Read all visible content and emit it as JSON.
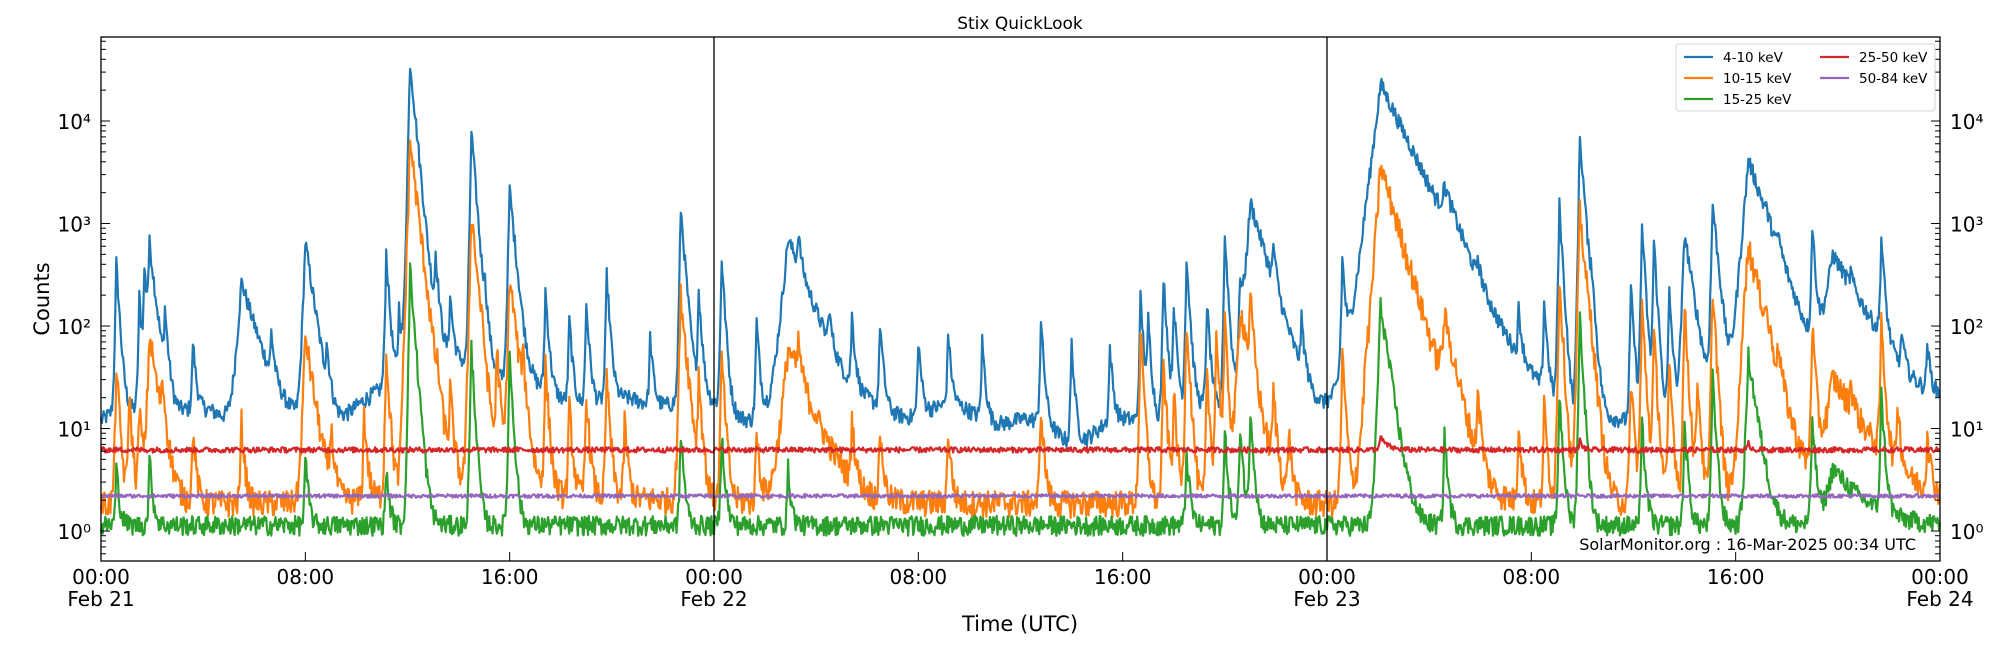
{
  "chart_data": {
    "type": "line",
    "title": "Stix QuickLook",
    "xlabel": "Time (UTC)",
    "ylabel": "Counts",
    "yscale": "log",
    "ylim": [
      0.51,
      66000
    ],
    "xlim": [
      "Feb 21 00:00",
      "Feb 24 00:00"
    ],
    "grid": false,
    "legend_placement": "top-right",
    "yticks": [
      1,
      10,
      100,
      1000,
      10000
    ],
    "ytick_labels": [
      "10⁰",
      "10¹",
      "10²",
      "10³",
      "10⁴"
    ],
    "xticks": [
      {
        "time": "Feb 21 00:00",
        "label": "00:00",
        "sublabel": "Feb 21"
      },
      {
        "time": "Feb 21 08:00",
        "label": "08:00",
        "sublabel": ""
      },
      {
        "time": "Feb 21 16:00",
        "label": "16:00",
        "sublabel": ""
      },
      {
        "time": "Feb 22 00:00",
        "label": "00:00",
        "sublabel": "Feb 22"
      },
      {
        "time": "Feb 22 08:00",
        "label": "08:00",
        "sublabel": ""
      },
      {
        "time": "Feb 22 16:00",
        "label": "16:00",
        "sublabel": ""
      },
      {
        "time": "Feb 23 00:00",
        "label": "00:00",
        "sublabel": "Feb 23"
      },
      {
        "time": "Feb 23 08:00",
        "label": "08:00",
        "sublabel": ""
      },
      {
        "time": "Feb 23 16:00",
        "label": "16:00",
        "sublabel": ""
      },
      {
        "time": "Feb 24 00:00",
        "label": "00:00",
        "sublabel": "Feb 24"
      }
    ],
    "day_boundaries": [
      "Feb 22 00:00",
      "Feb 23 00:00"
    ],
    "annotation": "SolarMonitor.org : 16-Mar-2025 00:34 UTC",
    "series": [
      {
        "name": "4-10 keV",
        "color": "#1f77b4",
        "baseline": 12,
        "peaks": [
          [
            "Feb 21 00:36",
            400
          ],
          [
            "Feb 21 01:30",
            180
          ],
          [
            "Feb 21 01:42",
            330
          ],
          [
            "Feb 21 01:54",
            600,
            12
          ],
          [
            "Feb 21 02:30",
            110
          ],
          [
            "Feb 21 03:36",
            55
          ],
          [
            "Feb 21 05:30",
            260,
            30
          ],
          [
            "Feb 21 06:40",
            55
          ],
          [
            "Feb 21 08:00",
            650,
            15
          ],
          [
            "Feb 21 08:50",
            40
          ],
          [
            "Feb 21 11:10",
            500
          ],
          [
            "Feb 21 11:40",
            120
          ],
          [
            "Feb 21 12:30",
            45,
            240
          ],
          [
            "Feb 21 12:06",
            38000,
            10
          ],
          [
            "Feb 21 13:06",
            400
          ],
          [
            "Feb 21 13:40",
            150
          ],
          [
            "Feb 21 14:30",
            8000,
            8
          ],
          [
            "Feb 21 15:00",
            150
          ],
          [
            "Feb 21 16:00",
            2100,
            10
          ],
          [
            "Feb 21 17:24",
            200
          ],
          [
            "Feb 21 18:20",
            100
          ],
          [
            "Feb 21 19:00",
            150
          ],
          [
            "Feb 21 19:48",
            300
          ],
          [
            "Feb 21 21:30",
            60
          ],
          [
            "Feb 21 22:42",
            1400,
            8
          ],
          [
            "Feb 21 23:24",
            200
          ],
          [
            "Feb 22 00:18",
            450
          ],
          [
            "Feb 22 01:40",
            100
          ],
          [
            "Feb 22 02:54",
            700,
            40
          ],
          [
            "Feb 22 03:18",
            450
          ],
          [
            "Feb 22 04:30",
            80
          ],
          [
            "Feb 22 05:24",
            100
          ],
          [
            "Feb 22 06:30",
            90
          ],
          [
            "Feb 22 08:00",
            60
          ],
          [
            "Feb 22 09:10",
            70
          ],
          [
            "Feb 22 10:30",
            60
          ],
          [
            "Feb 22 12:48",
            100
          ],
          [
            "Feb 22 14:00",
            60
          ],
          [
            "Feb 22 15:30",
            50
          ],
          [
            "Feb 22 16:42",
            180
          ],
          [
            "Feb 22 17:00",
            100
          ],
          [
            "Feb 22 17:36",
            300
          ],
          [
            "Feb 22 18:00",
            150
          ],
          [
            "Feb 22 18:30",
            450
          ],
          [
            "Feb 22 19:18",
            150
          ],
          [
            "Feb 22 20:00",
            750
          ],
          [
            "Feb 22 20:36",
            250
          ],
          [
            "Feb 22 21:00",
            1600,
            30
          ],
          [
            "Feb 22 21:54",
            380
          ],
          [
            "Feb 22 23:00",
            80
          ],
          [
            "Feb 23 00:36",
            420
          ],
          [
            "Feb 23 01:30",
            130
          ],
          [
            "Feb 23 01:00",
            25,
            180
          ],
          [
            "Feb 23 02:06",
            23000,
            50
          ],
          [
            "Feb 23 03:12",
            150
          ],
          [
            "Feb 23 04:36",
            1200,
            25
          ],
          [
            "Feb 23 05:54",
            180
          ],
          [
            "Feb 23 07:30",
            100
          ],
          [
            "Feb 23 08:30",
            150
          ],
          [
            "Feb 23 09:06",
            1500
          ],
          [
            "Feb 23 09:54",
            7000,
            8
          ],
          [
            "Feb 23 10:20",
            200
          ],
          [
            "Feb 23 11:54",
            220
          ],
          [
            "Feb 23 12:20",
            960
          ],
          [
            "Feb 23 12:48",
            660
          ],
          [
            "Feb 23 13:24",
            200
          ],
          [
            "Feb 23 14:00",
            800,
            15
          ],
          [
            "Feb 23 15:06",
            1550,
            10
          ],
          [
            "Feb 23 16:30",
            4200,
            35
          ],
          [
            "Feb 23 17:10",
            200
          ],
          [
            "Feb 23 17:40",
            250
          ],
          [
            "Feb 23 19:00",
            900
          ],
          [
            "Feb 23 19:48",
            480,
            60
          ],
          [
            "Feb 23 20:30",
            100
          ],
          [
            "Feb 23 21:42",
            660
          ],
          [
            "Feb 23 22:30",
            50
          ],
          [
            "Feb 23 23:30",
            45
          ]
        ]
      },
      {
        "name": "10-15 keV",
        "color": "#ff7f0e",
        "baseline": 1.9,
        "peaks": [
          [
            "Feb 21 00:36",
            40
          ],
          [
            "Feb 21 01:06",
            20
          ],
          [
            "Feb 21 01:30",
            15
          ],
          [
            "Feb 21 01:54",
            80,
            15
          ],
          [
            "Feb 21 02:24",
            20
          ],
          [
            "Feb 21 03:36",
            8
          ],
          [
            "Feb 21 05:30",
            10
          ],
          [
            "Feb 21 08:00",
            80,
            15
          ],
          [
            "Feb 21 09:00",
            8
          ],
          [
            "Feb 21 10:18",
            12
          ],
          [
            "Feb 21 12:30",
            1.6,
            240
          ],
          [
            "Feb 21 11:10",
            55
          ],
          [
            "Feb 21 11:50",
            15
          ],
          [
            "Feb 21 12:06",
            6500,
            12
          ],
          [
            "Feb 21 12:40",
            20
          ],
          [
            "Feb 21 13:10",
            12
          ],
          [
            "Feb 21 13:40",
            20
          ],
          [
            "Feb 21 14:30",
            1300,
            10
          ],
          [
            "Feb 21 14:50",
            20
          ],
          [
            "Feb 21 15:30",
            60
          ],
          [
            "Feb 21 16:00",
            300,
            12
          ],
          [
            "Feb 21 16:30",
            40
          ],
          [
            "Feb 21 17:24",
            40
          ],
          [
            "Feb 21 18:20",
            15
          ],
          [
            "Feb 21 19:00",
            20
          ],
          [
            "Feb 21 19:48",
            30
          ],
          [
            "Feb 21 20:30",
            10
          ],
          [
            "Feb 21 22:42",
            200,
            10
          ],
          [
            "Feb 21 23:24",
            30
          ],
          [
            "Feb 22 00:18",
            50
          ],
          [
            "Feb 22 01:40",
            8
          ],
          [
            "Feb 22 02:54",
            60,
            40
          ],
          [
            "Feb 22 03:18",
            40
          ],
          [
            "Feb 22 05:24",
            10
          ],
          [
            "Feb 22 06:30",
            8
          ],
          [
            "Feb 22 09:10",
            8
          ],
          [
            "Feb 22 12:48",
            15
          ],
          [
            "Feb 22 16:42",
            80
          ],
          [
            "Feb 22 17:36",
            40
          ],
          [
            "Feb 22 18:00",
            20
          ],
          [
            "Feb 22 18:30",
            120
          ],
          [
            "Feb 22 19:18",
            30
          ],
          [
            "Feb 22 19:40",
            80
          ],
          [
            "Feb 22 20:00",
            100
          ],
          [
            "Feb 22 20:36",
            150,
            20
          ],
          [
            "Feb 22 21:00",
            150
          ],
          [
            "Feb 22 21:54",
            20
          ],
          [
            "Feb 22 22:30",
            8
          ],
          [
            "Feb 23 00:36",
            50
          ],
          [
            "Feb 23 01:30",
            20
          ],
          [
            "Feb 23 02:06",
            3700,
            30
          ],
          [
            "Feb 23 03:12",
            20
          ],
          [
            "Feb 23 04:36",
            100,
            20
          ],
          [
            "Feb 23 05:54",
            20
          ],
          [
            "Feb 23 07:30",
            10
          ],
          [
            "Feb 23 08:30",
            15
          ],
          [
            "Feb 23 09:06",
            300
          ],
          [
            "Feb 23 09:54",
            1300,
            10
          ],
          [
            "Feb 23 10:20",
            25
          ],
          [
            "Feb 23 11:54",
            30
          ],
          [
            "Feb 23 12:20",
            150
          ],
          [
            "Feb 23 12:48",
            80
          ],
          [
            "Feb 23 13:24",
            40
          ],
          [
            "Feb 23 14:00",
            150
          ],
          [
            "Feb 23 14:30",
            30
          ],
          [
            "Feb 23 15:06",
            250
          ],
          [
            "Feb 23 16:20",
            150
          ],
          [
            "Feb 23 16:30",
            600,
            25
          ],
          [
            "Feb 23 17:10",
            40
          ],
          [
            "Feb 23 17:40",
            30
          ],
          [
            "Feb 23 19:00",
            100
          ],
          [
            "Feb 23 19:48",
            30,
            60
          ],
          [
            "Feb 23 20:30",
            15
          ],
          [
            "Feb 23 21:42",
            100
          ],
          [
            "Feb 23 22:20",
            15
          ],
          [
            "Feb 23 23:30",
            8
          ]
        ]
      },
      {
        "name": "15-25 keV",
        "color": "#2ca02c",
        "baseline": 1.15,
        "peaks": [
          [
            "Feb 21 00:36",
            3
          ],
          [
            "Feb 21 01:54",
            4
          ],
          [
            "Feb 21 08:00",
            4
          ],
          [
            "Feb 21 11:10",
            3
          ],
          [
            "Feb 21 12:06",
            350,
            8
          ],
          [
            "Feb 21 14:30",
            60
          ],
          [
            "Feb 21 16:00",
            50
          ],
          [
            "Feb 21 22:42",
            8
          ],
          [
            "Feb 22 00:18",
            8
          ],
          [
            "Feb 22 02:54",
            3
          ],
          [
            "Feb 22 18:30",
            5
          ],
          [
            "Feb 22 20:00",
            8
          ],
          [
            "Feb 22 20:36",
            10
          ],
          [
            "Feb 22 21:00",
            15
          ],
          [
            "Feb 23 02:06",
            160,
            15
          ],
          [
            "Feb 23 04:36",
            8
          ],
          [
            "Feb 23 09:06",
            20
          ],
          [
            "Feb 23 09:54",
            120
          ],
          [
            "Feb 23 12:20",
            10
          ],
          [
            "Feb 23 14:00",
            10
          ],
          [
            "Feb 23 15:06",
            30
          ],
          [
            "Feb 23 16:30",
            50,
            15
          ],
          [
            "Feb 23 19:00",
            12
          ],
          [
            "Feb 23 19:48",
            3,
            60
          ],
          [
            "Feb 23 21:42",
            20
          ]
        ]
      },
      {
        "name": "25-50 keV",
        "color": "#d62728",
        "baseline": 6.2,
        "peaks": [
          [
            "Feb 23 02:06",
            2,
            15
          ],
          [
            "Feb 23 09:54",
            1.5
          ],
          [
            "Feb 23 16:30",
            1
          ]
        ]
      },
      {
        "name": "50-84 keV",
        "color": "#9467bd",
        "baseline": 2.2,
        "peaks": []
      }
    ]
  }
}
